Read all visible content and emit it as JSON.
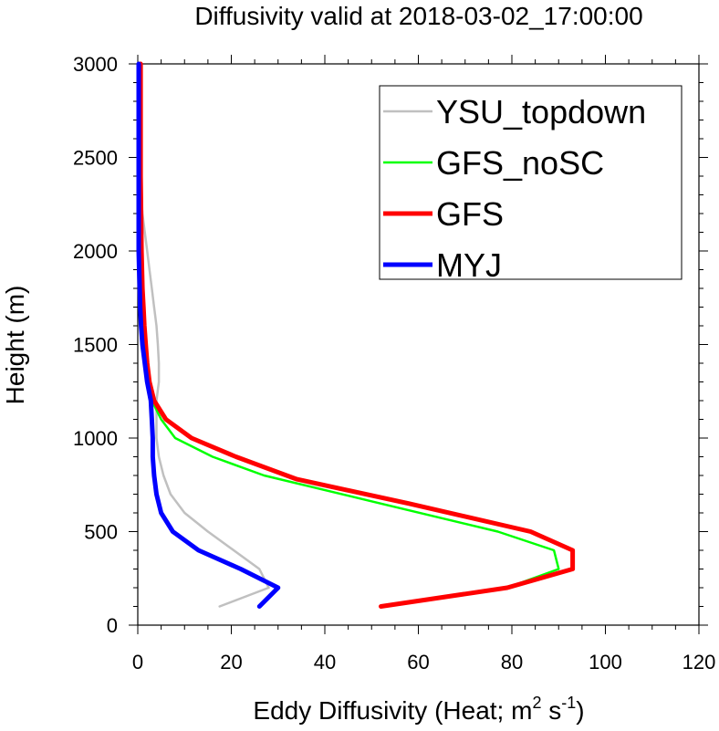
{
  "chart_data": {
    "type": "line",
    "title": "Diffusivity valid at 2018-03-02_17:00:00",
    "xlabel": "Eddy Diffusivity (Heat; m",
    "xlabel_sup1": "2",
    "xlabel_mid": " s",
    "xlabel_sup2": "-1",
    "xlabel_end": ")",
    "ylabel": "Height (m)",
    "xlim": [
      0,
      120
    ],
    "ylim": [
      0,
      3000
    ],
    "x_ticks": [
      0,
      20,
      40,
      60,
      80,
      100,
      120
    ],
    "y_ticks": [
      0,
      500,
      1000,
      1500,
      2000,
      2500,
      3000
    ],
    "x_tick_labels": [
      "0",
      "20",
      "40",
      "60",
      "80",
      "100",
      "120"
    ],
    "y_tick_labels": [
      "0",
      "500",
      "1000",
      "1500",
      "2000",
      "2500",
      "3000"
    ],
    "grid": false,
    "legend_position": "top-right",
    "series": [
      {
        "name": "YSU_topdown",
        "color": "#c0c0c0",
        "width": 2.5,
        "points": [
          [
            17.5,
            100
          ],
          [
            28,
            200
          ],
          [
            26,
            300
          ],
          [
            15,
            500
          ],
          [
            10,
            600
          ],
          [
            7,
            700
          ],
          [
            5.5,
            800
          ],
          [
            4.5,
            900
          ],
          [
            4,
            1000
          ],
          [
            4,
            1100
          ],
          [
            4,
            1200
          ],
          [
            4.5,
            1300
          ],
          [
            4.5,
            1400
          ],
          [
            4.3,
            1500
          ],
          [
            4,
            1600
          ],
          [
            3.5,
            1700
          ],
          [
            3,
            1800
          ],
          [
            2.5,
            1900
          ],
          [
            2,
            2000
          ],
          [
            1.5,
            2100
          ],
          [
            1,
            2200
          ],
          [
            0.7,
            2300
          ],
          [
            0.5,
            2500
          ],
          [
            0.4,
            2700
          ],
          [
            0.3,
            3000
          ]
        ]
      },
      {
        "name": "GFS_noSC",
        "color": "#00ff00",
        "width": 2.5,
        "points": [
          [
            52,
            100
          ],
          [
            79,
            200
          ],
          [
            90,
            300
          ],
          [
            89,
            400
          ],
          [
            77,
            500
          ],
          [
            52,
            650
          ],
          [
            27,
            800
          ],
          [
            16,
            900
          ],
          [
            8,
            1000
          ],
          [
            5,
            1100
          ],
          [
            3,
            1200
          ],
          [
            2.5,
            1300
          ],
          [
            2,
            1400
          ],
          [
            1.7,
            1500
          ],
          [
            1.4,
            1600
          ],
          [
            1.2,
            1700
          ],
          [
            1,
            1800
          ],
          [
            0.8,
            2000
          ],
          [
            0.7,
            2200
          ],
          [
            0.6,
            2400
          ],
          [
            0.6,
            2600
          ],
          [
            0.6,
            2800
          ],
          [
            0.6,
            3000
          ]
        ]
      },
      {
        "name": "GFS",
        "color": "#ff0000",
        "width": 5,
        "points": [
          [
            52,
            100
          ],
          [
            79,
            200
          ],
          [
            93,
            300
          ],
          [
            93,
            400
          ],
          [
            84,
            500
          ],
          [
            58,
            650
          ],
          [
            34,
            780
          ],
          [
            21,
            900
          ],
          [
            11.5,
            1000
          ],
          [
            6,
            1100
          ],
          [
            3.5,
            1200
          ],
          [
            2.5,
            1300
          ],
          [
            2,
            1400
          ],
          [
            1.7,
            1500
          ],
          [
            1.4,
            1600
          ],
          [
            1.2,
            1700
          ],
          [
            1,
            1800
          ],
          [
            0.8,
            2000
          ],
          [
            0.7,
            2200
          ],
          [
            0.6,
            2400
          ],
          [
            0.6,
            2600
          ],
          [
            0.6,
            2800
          ],
          [
            0.6,
            3000
          ]
        ]
      },
      {
        "name": "MYJ",
        "color": "#0000ff",
        "width": 5,
        "points": [
          [
            26,
            100
          ],
          [
            30,
            200
          ],
          [
            22,
            300
          ],
          [
            13,
            400
          ],
          [
            7.5,
            500
          ],
          [
            5,
            600
          ],
          [
            4,
            700
          ],
          [
            3.5,
            800
          ],
          [
            3.2,
            900
          ],
          [
            3.2,
            1000
          ],
          [
            3,
            1100
          ],
          [
            2.8,
            1200
          ],
          [
            2,
            1300
          ],
          [
            1.5,
            1400
          ],
          [
            1,
            1500
          ],
          [
            0.7,
            1600
          ],
          [
            0.5,
            1700
          ],
          [
            0.4,
            1800
          ],
          [
            0.3,
            1900
          ],
          [
            0.2,
            2000
          ],
          [
            0.2,
            2200
          ],
          [
            0.2,
            2400
          ],
          [
            0.2,
            2600
          ],
          [
            0.2,
            2800
          ],
          [
            0.2,
            3000
          ]
        ]
      }
    ]
  }
}
